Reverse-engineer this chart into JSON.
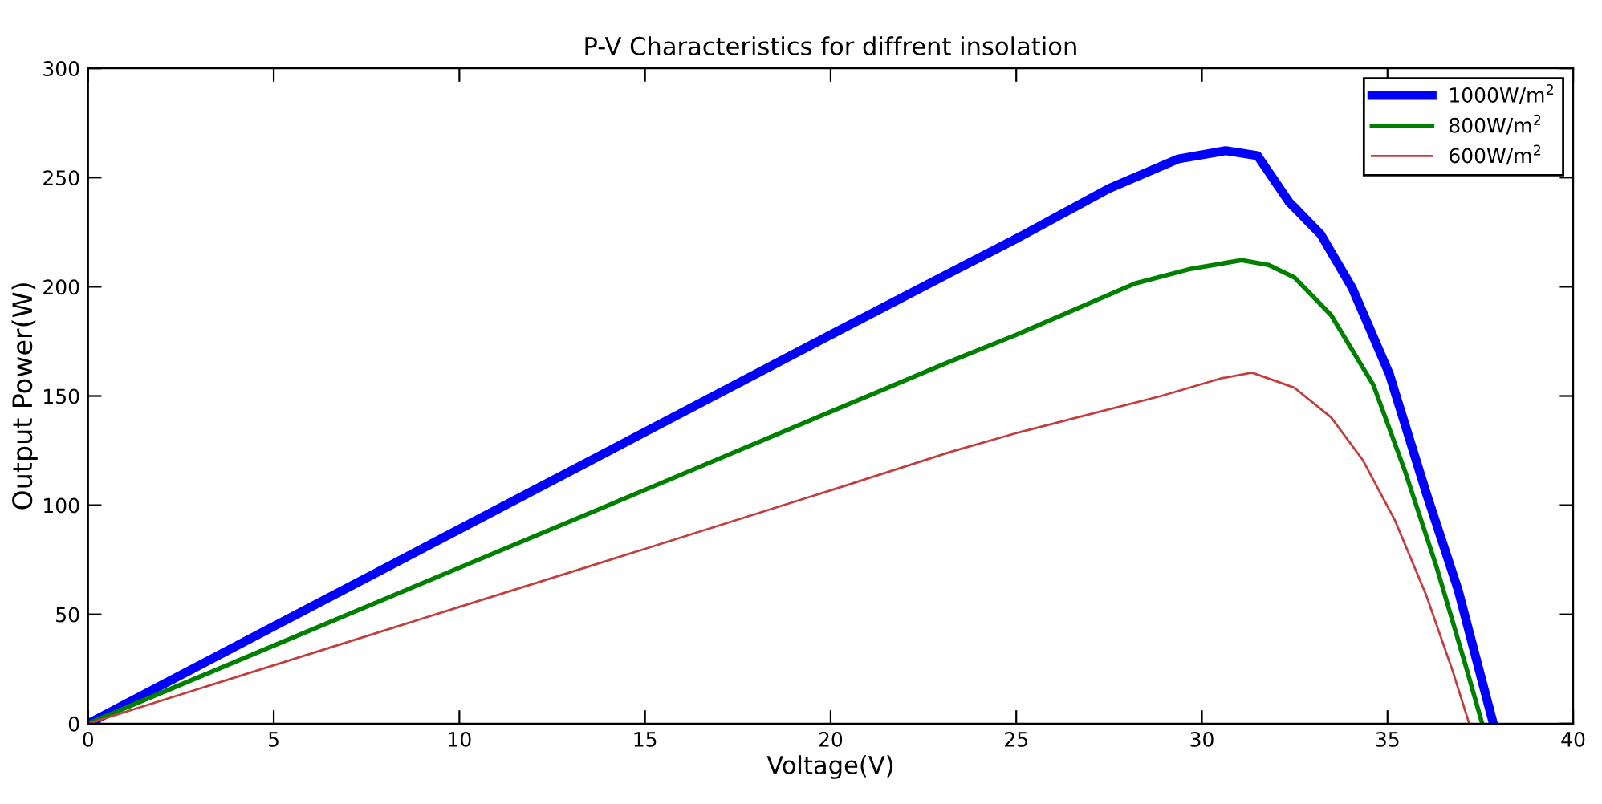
{
  "chart_data": {
    "type": "line",
    "title": "P-V Characteristics for diffrent insolation",
    "xlabel": "Voltage(V)",
    "ylabel": "Output Power(W)",
    "xlim": [
      0,
      40
    ],
    "ylim": [
      0,
      300
    ],
    "xticks": [
      0,
      5,
      10,
      15,
      20,
      25,
      30,
      35,
      40
    ],
    "yticks": [
      0,
      50,
      100,
      150,
      200,
      250,
      300
    ],
    "grid": false,
    "legend": "top right",
    "marker": "none",
    "line_style": "solid",
    "series": [
      {
        "name": "1000W/m$^{2}$",
        "color": "#0000ff",
        "x": [
          0,
          5,
          10,
          15,
          20,
          23.25,
          25,
          27.5,
          29.36,
          30.64,
          31.5,
          32.35,
          33.2,
          34.05,
          35.05,
          36.04,
          36.9,
          37.6,
          37.85
        ],
        "values": [
          0,
          44.5,
          89,
          133.5,
          178,
          206.7,
          222,
          245,
          258.5,
          262.3,
          260,
          238.8,
          224,
          199.4,
          160,
          105.7,
          61.3,
          16,
          0
        ]
      },
      {
        "name": "800W/m$^{2}$",
        "color": "#008000",
        "x": [
          0,
          5,
          10,
          15,
          20,
          23.25,
          25,
          28.2,
          29.65,
          31.07,
          31.8,
          32.49,
          33.48,
          34.62,
          35.47,
          36.33,
          37.1,
          37.55
        ],
        "values": [
          0,
          35.7,
          71.4,
          107,
          142.8,
          166,
          178,
          201.5,
          208,
          212.2,
          210,
          204.3,
          187,
          155,
          115.6,
          71.2,
          26.8,
          0
        ]
      },
      {
        "name": "600W/m$^{2}$",
        "color": "#c04040",
        "x": [
          0,
          5,
          10,
          15,
          20,
          23.25,
          25,
          28.9,
          30.5,
          31.35,
          32.49,
          33.48,
          34.34,
          35.19,
          36.04,
          36.75,
          37.2
        ],
        "values": [
          0,
          26.7,
          53.4,
          80,
          106.8,
          124.5,
          133,
          150,
          158,
          160.7,
          153.8,
          140.2,
          120.5,
          93.4,
          58.9,
          24.3,
          0
        ]
      }
    ]
  }
}
